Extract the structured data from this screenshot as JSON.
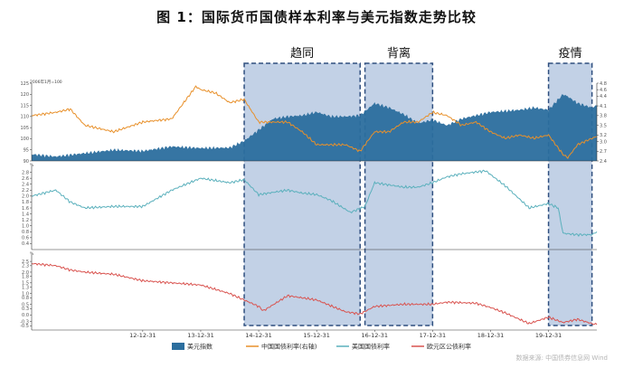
{
  "title": "图 1：国际货币国债样本利率与美元指数走势比较",
  "source": "数据来源: 中国债券信息网 Wind",
  "colors": {
    "usd": "#2b6e9e",
    "cn": "#e8902a",
    "us": "#5ab0bc",
    "eu": "#d9534f",
    "band_fill": "#b7c9e2",
    "band_stroke": "#2f4f7f"
  },
  "periods": [
    {
      "label": "趋同",
      "start": "2014-09",
      "end": "2016-09"
    },
    {
      "label": "背离",
      "start": "2016-10",
      "end": "2017-12"
    },
    {
      "label": "疫情",
      "start": "2019-12",
      "end": "2020-09"
    }
  ],
  "chart_data": [
    {
      "type": "area+line",
      "unit_label": "2006年1月=100",
      "x_range": [
        "2011-01",
        "2020-10"
      ],
      "left_axis": {
        "ticks": [
          90,
          95,
          100,
          105,
          110,
          115,
          120,
          125
        ],
        "ylim": [
          90,
          125
        ]
      },
      "right_axis": {
        "ticks": [
          2.4,
          2.7,
          3.0,
          3.2,
          3.5,
          3.8,
          4.1,
          4.4,
          4.6,
          4.8
        ],
        "ylim": [
          2.4,
          4.8
        ]
      },
      "series": [
        {
          "name": "美元指数",
          "axis": "left",
          "points": [
            [
              "2011-01",
              93
            ],
            [
              "2011-06",
              92
            ],
            [
              "2011-12",
              93.5
            ],
            [
              "2012-06",
              95
            ],
            [
              "2012-12",
              94.5
            ],
            [
              "2013-06",
              96.5
            ],
            [
              "2013-12",
              95.8
            ],
            [
              "2014-06",
              96
            ],
            [
              "2014-09",
              99
            ],
            [
              "2014-12",
              104
            ],
            [
              "2015-03",
              109
            ],
            [
              "2015-06",
              110
            ],
            [
              "2015-09",
              110.5
            ],
            [
              "2015-12",
              112
            ],
            [
              "2016-03",
              110
            ],
            [
              "2016-06",
              110
            ],
            [
              "2016-09",
              110.5
            ],
            [
              "2016-12",
              116
            ],
            [
              "2017-03",
              114
            ],
            [
              "2017-06",
              111
            ],
            [
              "2017-09",
              107
            ],
            [
              "2017-12",
              108.5
            ],
            [
              "2018-03",
              106
            ],
            [
              "2018-06",
              109
            ],
            [
              "2018-09",
              110.5
            ],
            [
              "2018-12",
              112
            ],
            [
              "2019-06",
              113
            ],
            [
              "2019-09",
              114
            ],
            [
              "2019-12",
              113
            ],
            [
              "2020-03",
              120
            ],
            [
              "2020-04",
              119
            ],
            [
              "2020-06",
              116
            ],
            [
              "2020-09",
              114
            ],
            [
              "2020-10",
              115
            ]
          ]
        },
        {
          "name": "中国国债利率(右轴)",
          "axis": "right",
          "points": [
            [
              "2011-01",
              3.8
            ],
            [
              "2011-06",
              3.9
            ],
            [
              "2011-09",
              4.0
            ],
            [
              "2011-12",
              3.5
            ],
            [
              "2012-06",
              3.3
            ],
            [
              "2012-12",
              3.6
            ],
            [
              "2013-06",
              3.7
            ],
            [
              "2013-09",
              4.3
            ],
            [
              "2013-11",
              4.7
            ],
            [
              "2013-12",
              4.6
            ],
            [
              "2014-03",
              4.5
            ],
            [
              "2014-06",
              4.2
            ],
            [
              "2014-09",
              4.3
            ],
            [
              "2014-12",
              3.6
            ],
            [
              "2015-06",
              3.6
            ],
            [
              "2015-09",
              3.3
            ],
            [
              "2015-12",
              2.9
            ],
            [
              "2016-03",
              2.9
            ],
            [
              "2016-06",
              2.9
            ],
            [
              "2016-09",
              2.7
            ],
            [
              "2016-12",
              3.3
            ],
            [
              "2017-03",
              3.3
            ],
            [
              "2017-06",
              3.6
            ],
            [
              "2017-09",
              3.6
            ],
            [
              "2017-12",
              3.9
            ],
            [
              "2018-03",
              3.8
            ],
            [
              "2018-06",
              3.5
            ],
            [
              "2018-09",
              3.6
            ],
            [
              "2018-12",
              3.3
            ],
            [
              "2019-03",
              3.1
            ],
            [
              "2019-06",
              3.2
            ],
            [
              "2019-09",
              3.1
            ],
            [
              "2019-12",
              3.2
            ],
            [
              "2020-03",
              2.6
            ],
            [
              "2020-04",
              2.5
            ],
            [
              "2020-06",
              2.9
            ],
            [
              "2020-09",
              3.1
            ],
            [
              "2020-10",
              3.15
            ]
          ]
        }
      ]
    },
    {
      "type": "line",
      "unit_label": "%",
      "ylim": [
        0.2,
        3.0
      ],
      "ticks": [
        0.4,
        0.6,
        0.8,
        1.0,
        1.2,
        1.4,
        1.6,
        1.8,
        2.0,
        2.2,
        2.4,
        2.6,
        2.8
      ],
      "series": [
        {
          "name": "美国国债利率",
          "points": [
            [
              "2011-01",
              2.0
            ],
            [
              "2011-06",
              2.2
            ],
            [
              "2011-09",
              1.8
            ],
            [
              "2011-12",
              1.6
            ],
            [
              "2012-06",
              1.65
            ],
            [
              "2012-12",
              1.65
            ],
            [
              "2013-06",
              2.2
            ],
            [
              "2013-09",
              2.4
            ],
            [
              "2013-12",
              2.6
            ],
            [
              "2014-06",
              2.45
            ],
            [
              "2014-09",
              2.55
            ],
            [
              "2014-12",
              2.05
            ],
            [
              "2015-06",
              2.2
            ],
            [
              "2015-09",
              2.1
            ],
            [
              "2015-12",
              2.05
            ],
            [
              "2016-03",
              1.85
            ],
            [
              "2016-07",
              1.45
            ],
            [
              "2016-10",
              1.65
            ],
            [
              "2016-12",
              2.45
            ],
            [
              "2017-06",
              2.3
            ],
            [
              "2017-09",
              2.3
            ],
            [
              "2017-12",
              2.45
            ],
            [
              "2018-03",
              2.65
            ],
            [
              "2018-06",
              2.75
            ],
            [
              "2018-11",
              2.85
            ],
            [
              "2019-03",
              2.35
            ],
            [
              "2019-08",
              1.6
            ],
            [
              "2019-12",
              1.75
            ],
            [
              "2020-02",
              1.6
            ],
            [
              "2020-03",
              0.75
            ],
            [
              "2020-06",
              0.7
            ],
            [
              "2020-09",
              0.7
            ],
            [
              "2020-10",
              0.8
            ]
          ]
        }
      ]
    },
    {
      "type": "line",
      "unit_label": "%",
      "ylim": [
        -0.7,
        2.8
      ],
      "ticks": [
        -0.5,
        -0.3,
        0.0,
        0.3,
        0.5,
        0.8,
        1.0,
        1.3,
        1.5,
        1.8,
        2.0,
        2.3,
        2.5
      ],
      "series": [
        {
          "name": "欧元区公债利率",
          "points": [
            [
              "2011-01",
              2.4
            ],
            [
              "2011-06",
              2.3
            ],
            [
              "2011-09",
              2.1
            ],
            [
              "2011-12",
              2.0
            ],
            [
              "2012-06",
              1.9
            ],
            [
              "2012-12",
              1.6
            ],
            [
              "2013-06",
              1.5
            ],
            [
              "2013-12",
              1.4
            ],
            [
              "2014-06",
              1.0
            ],
            [
              "2014-09",
              0.7
            ],
            [
              "2014-12",
              0.4
            ],
            [
              "2015-01",
              0.2
            ],
            [
              "2015-06",
              0.9
            ],
            [
              "2015-12",
              0.7
            ],
            [
              "2016-06",
              0.15
            ],
            [
              "2016-09",
              0.05
            ],
            [
              "2016-12",
              0.4
            ],
            [
              "2017-06",
              0.5
            ],
            [
              "2017-12",
              0.5
            ],
            [
              "2018-03",
              0.6
            ],
            [
              "2018-09",
              0.55
            ],
            [
              "2018-12",
              0.35
            ],
            [
              "2019-03",
              0.1
            ],
            [
              "2019-08",
              -0.4
            ],
            [
              "2019-12",
              -0.1
            ],
            [
              "2020-03",
              -0.35
            ],
            [
              "2020-06",
              -0.2
            ],
            [
              "2020-09",
              -0.4
            ],
            [
              "2020-10",
              -0.45
            ]
          ]
        }
      ]
    }
  ],
  "x_axis_ticks": [
    "12-12-31",
    "13-12-31",
    "14-12-31",
    "15-12-31",
    "16-12-31",
    "17-12-31",
    "18-12-31",
    "19-12-31"
  ]
}
